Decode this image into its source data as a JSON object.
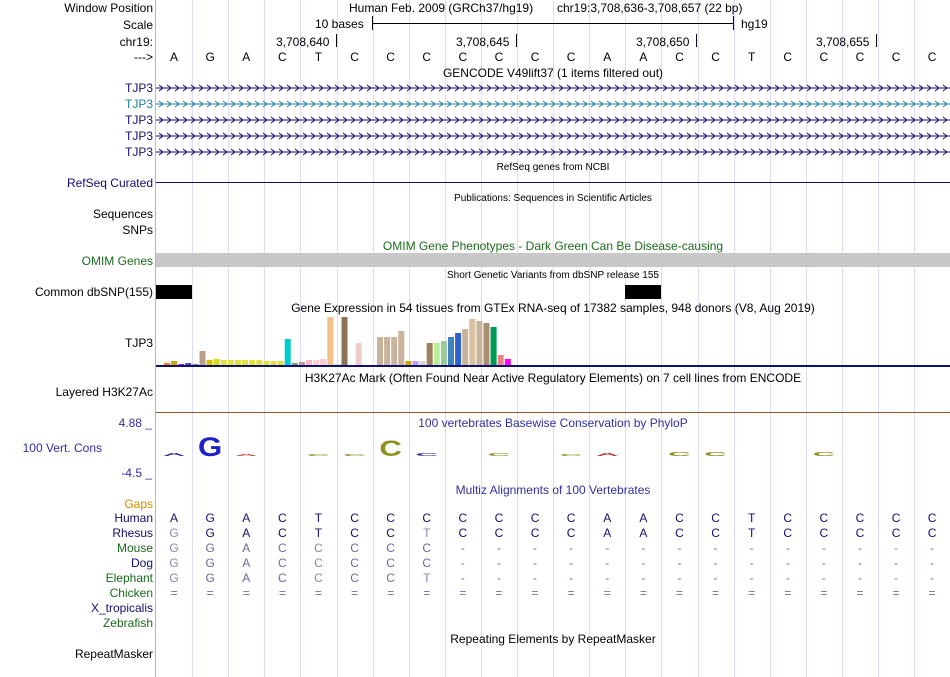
{
  "position": {
    "label": "Window Position",
    "assembly": "Human Feb. 2009 (GRCh37/hg19)",
    "coords": "chr19:3,708,636-3,708,657 (22 bp)"
  },
  "scale": {
    "label": "Scale",
    "bases": "10 bases",
    "db": "hg19"
  },
  "chrom": {
    "label": "chr19:",
    "ticks": [
      "3,708,640",
      "3,708,645",
      "3,708,650",
      "3,708,655"
    ]
  },
  "seq": {
    "label": "--->",
    "bases": [
      "A",
      "G",
      "A",
      "C",
      "T",
      "C",
      "C",
      "C",
      "C",
      "C",
      "C",
      "C",
      "A",
      "A",
      "C",
      "C",
      "T",
      "C",
      "C",
      "C",
      "C",
      "C"
    ]
  },
  "gencode": {
    "title": "GENCODE V49lift37 (1 items filtered out)",
    "items": [
      {
        "name": "TJP3",
        "color": "#10106f"
      },
      {
        "name": "TJP3",
        "color": "#1a7fa6"
      },
      {
        "name": "TJP3",
        "color": "#10106f"
      },
      {
        "name": "TJP3",
        "color": "#10106f"
      },
      {
        "name": "TJP3",
        "color": "#10106f"
      }
    ]
  },
  "refseq": {
    "title": "RefSeq genes from NCBI",
    "label": "RefSeq Curated"
  },
  "publications": {
    "title": "Publications: Sequences in Scientific Articles",
    "sequences_label": "Sequences",
    "snps_label": "SNPs"
  },
  "omim": {
    "title": "OMIM Gene Phenotypes - Dark Green Can Be Disease-causing",
    "label": "OMIM Genes"
  },
  "dbsnp": {
    "title": "Short Genetic Variants from dbSNP release 155",
    "label": "Common dbSNP(155)"
  },
  "gtex": {
    "title": "Gene Expression in 54 tissues from GTEx RNA-seq of 17382 samples, 948 donors (V8, Aug 2019)",
    "label": "TJP3",
    "bars": [
      {
        "value": 2,
        "color": "#ff7f00"
      },
      {
        "value": 4,
        "color": "#c8a800"
      },
      {
        "value": 1,
        "color": "#8a2be2"
      },
      {
        "value": 2,
        "color": "#4a4aaa"
      },
      {
        "value": 1,
        "color": "#888888"
      },
      {
        "value": 14,
        "color": "#bba088"
      },
      {
        "value": 5,
        "color": "#d8c000"
      },
      {
        "value": 6,
        "color": "#d8d820"
      },
      {
        "value": 5,
        "color": "#e0e040"
      },
      {
        "value": 5,
        "color": "#e0e040"
      },
      {
        "value": 5,
        "color": "#e0e040"
      },
      {
        "value": 5,
        "color": "#e0e040"
      },
      {
        "value": 5,
        "color": "#e0e040"
      },
      {
        "value": 5,
        "color": "#e0e040"
      },
      {
        "value": 4,
        "color": "#e0e040"
      },
      {
        "value": 4,
        "color": "#e0e040"
      },
      {
        "value": 4,
        "color": "#e0e040"
      },
      {
        "value": 26,
        "color": "#00cccc"
      },
      {
        "value": 2,
        "color": "#7a9a7a"
      },
      {
        "value": 3,
        "color": "#bb9999"
      },
      {
        "value": 5,
        "color": "#ffb6c1"
      },
      {
        "value": 5,
        "color": "#ffd0d0"
      },
      {
        "value": 6,
        "color": "#ffcccc"
      },
      {
        "value": 48,
        "color": "#f5c08a"
      },
      {
        "value": 1,
        "color": "#ddddaa"
      },
      {
        "value": 48,
        "color": "#8b7355"
      },
      {
        "value": 3,
        "color": "#ffffff"
      },
      {
        "value": 22,
        "color": "#eecccc"
      },
      {
        "value": 2,
        "color": "#ffffff"
      },
      {
        "value": 2,
        "color": "#ffffff"
      },
      {
        "value": 28,
        "color": "#c8b49a"
      },
      {
        "value": 28,
        "color": "#c8b49a"
      },
      {
        "value": 28,
        "color": "#c8b49a"
      },
      {
        "value": 34,
        "color": "#c8b49a"
      },
      {
        "value": 4,
        "color": "#c8a800"
      },
      {
        "value": 4,
        "color": "#bfa0ff"
      },
      {
        "value": 4,
        "color": "#d4d4d4"
      },
      {
        "value": 22,
        "color": "#a08060"
      },
      {
        "value": 22,
        "color": "#bbee99"
      },
      {
        "value": 24,
        "color": "#99cc99"
      },
      {
        "value": 28,
        "color": "#4080c0"
      },
      {
        "value": 32,
        "color": "#3060d0"
      },
      {
        "value": 36,
        "color": "#c8b49a"
      },
      {
        "value": 46,
        "color": "#d8c0a0"
      },
      {
        "value": 44,
        "color": "#c8b49a"
      },
      {
        "value": 42,
        "color": "#a89070"
      },
      {
        "value": 38,
        "color": "#009955"
      },
      {
        "value": 10,
        "color": "#f08080"
      },
      {
        "value": 6,
        "color": "#ff00ff"
      }
    ]
  },
  "h3k27ac": {
    "title": "H3K27Ac Mark (Often Found Near Active Regulatory Elements) on 7 cell lines from ENCODE",
    "label": "Layered H3K27Ac"
  },
  "phylop": {
    "title": "100 vertebrates Basewise Conservation by PhyloP",
    "label": "100 Vert. Cons",
    "ymax": "4.88 _",
    "ymin": "-4.5 _",
    "logo": [
      {
        "base": "A",
        "height": 3,
        "color": "#3030a0"
      },
      {
        "base": "G",
        "height": 19,
        "color": "#2020c8"
      },
      {
        "base": "A",
        "height": 2,
        "color": "#c03030"
      },
      {
        "base": "",
        "height": 0,
        "color": "#000000"
      },
      {
        "base": "C",
        "height": 2,
        "color": "#909020"
      },
      {
        "base": "C",
        "height": 2,
        "color": "#909020"
      },
      {
        "base": "C",
        "height": 16,
        "color": "#909020"
      },
      {
        "base": "C",
        "height": 3,
        "color": "#3030a0"
      },
      {
        "base": "",
        "height": 0,
        "color": "#000000"
      },
      {
        "base": "C",
        "height": 3,
        "color": "#909020"
      },
      {
        "base": "",
        "height": 0,
        "color": "#000000"
      },
      {
        "base": "C",
        "height": 2,
        "color": "#909020"
      },
      {
        "base": "A",
        "height": 3,
        "color": "#c03030"
      },
      {
        "base": "",
        "height": 0,
        "color": "#000000"
      },
      {
        "base": "C",
        "height": 4,
        "color": "#909020"
      },
      {
        "base": "C",
        "height": 4,
        "color": "#909020"
      },
      {
        "base": "",
        "height": 0,
        "color": "#000000"
      },
      {
        "base": "",
        "height": 0,
        "color": "#000000"
      },
      {
        "base": "C",
        "height": 4,
        "color": "#909020"
      },
      {
        "base": "",
        "height": 0,
        "color": "#000000"
      },
      {
        "base": "",
        "height": 0,
        "color": "#000000"
      },
      {
        "base": "",
        "height": 0,
        "color": "#000000"
      }
    ]
  },
  "multiz": {
    "title": "Multiz Alignments of 100 Vertebrates",
    "gaps_label": "Gaps",
    "species": [
      {
        "name": "Human",
        "color": "#10106f",
        "bases": [
          "A",
          "G",
          "A",
          "C",
          "T",
          "C",
          "C",
          "C",
          "C",
          "C",
          "C",
          "C",
          "A",
          "A",
          "C",
          "C",
          "T",
          "C",
          "C",
          "C",
          "C",
          "C"
        ]
      },
      {
        "name": "Rhesus",
        "color": "#10106f",
        "bases": [
          "G",
          "G",
          "A",
          "C",
          "T",
          "C",
          "C",
          "T",
          "C",
          "C",
          "C",
          "C",
          "A",
          "A",
          "C",
          "C",
          "T",
          "C",
          "C",
          "C",
          "C",
          "C"
        ]
      },
      {
        "name": "Mouse",
        "color": "#1b6b1b",
        "bases": [
          "G",
          "G",
          "A",
          "C",
          "C",
          "C",
          "C",
          "C",
          "-",
          "-",
          "-",
          "-",
          "-",
          "-",
          "-",
          "-",
          "-",
          "-",
          "-",
          "-",
          "-",
          "-"
        ]
      },
      {
        "name": "Dog",
        "color": "#10106f",
        "bases": [
          "G",
          "G",
          "A",
          "C",
          "C",
          "C",
          "C",
          "C",
          "-",
          "-",
          "-",
          "-",
          "-",
          "-",
          "-",
          "-",
          "-",
          "-",
          "-",
          "-",
          "-",
          "-"
        ]
      },
      {
        "name": "Elephant",
        "color": "#1b6b1b",
        "bases": [
          "G",
          "G",
          "A",
          "C",
          "C",
          "C",
          "C",
          "T",
          "-",
          "-",
          "-",
          "-",
          "-",
          "-",
          "-",
          "-",
          "-",
          "-",
          "-",
          "-",
          "-",
          "-"
        ]
      },
      {
        "name": "Chicken",
        "color": "#1b6b1b",
        "bases": [
          "=",
          "=",
          "=",
          "=",
          "=",
          "=",
          "=",
          "=",
          "=",
          "=",
          "=",
          "=",
          "=",
          "=",
          "=",
          "=",
          "=",
          "=",
          "=",
          "=",
          "=",
          "="
        ]
      },
      {
        "name": "X_tropicalis",
        "color": "#10106f",
        "bases": []
      },
      {
        "name": "Zebrafish",
        "color": "#1b6b1b",
        "bases": []
      }
    ]
  },
  "repeatmasker": {
    "title": "Repeating Elements by RepeatMasker",
    "label": "RepeatMasker"
  },
  "colors": {
    "label_blue": "#10106f",
    "label_green": "#1b6b1b",
    "gaps_orange": "#d08c00",
    "omim_gray": "#c8c8c8",
    "phylop_blue": "#3030a0"
  }
}
